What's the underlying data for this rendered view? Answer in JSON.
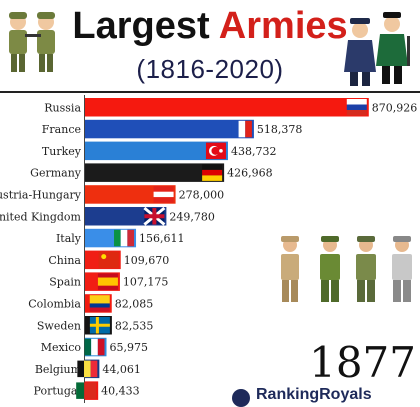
{
  "header": {
    "title_part1": "Largest",
    "title_part2": "Armies",
    "subtitle": "(1816-2020)"
  },
  "year": "1877",
  "branding": "RankingRoyals",
  "colors": {
    "accent": "#d3201a",
    "divider": "#222222"
  },
  "chart_data": {
    "type": "bar",
    "orientation": "horizontal",
    "title": "Largest Armies",
    "subtitle": "(1816-2020)",
    "year": "1877",
    "xlim": [
      0,
      890000
    ],
    "categories": [
      "Russia",
      "France",
      "Turkey",
      "Germany",
      "Austria-Hungary",
      "United Kingdom",
      "Italy",
      "China",
      "Spain",
      "Colombia",
      "Sweden",
      "Mexico",
      "Belgium",
      "Portugal"
    ],
    "values": [
      870926,
      518378,
      438732,
      426968,
      278000,
      249780,
      156611,
      109670,
      107175,
      82085,
      82535,
      65975,
      44061,
      40433
    ],
    "value_labels": [
      "870,926",
      "518,378",
      "438,732",
      "426,968",
      "278,000",
      "249,780",
      "156,611",
      "109,670",
      "107,175",
      "82,085",
      "82,535",
      "65,975",
      "44,061",
      "40,433"
    ],
    "bar_colors": [
      "#f5190f",
      "#1f4fb8",
      "#2a80d6",
      "#1b1b1b",
      "#ee2f0f",
      "#1c3d8f",
      "#3a8ee8",
      "#f01e14",
      "#f11d14",
      "#f21b10",
      "#141414",
      "#2c8edc",
      "#143a88",
      "#f01812"
    ],
    "flags": [
      "russia-flag",
      "france-flag",
      "turkey-flag",
      "germany-flag",
      "austria-hungary-flag",
      "united-kingdom-flag",
      "italy-flag",
      "china-flag",
      "spain-flag",
      "colombia-flag",
      "sweden-flag",
      "mexico-flag",
      "belgium-flag",
      "portugal-flag"
    ]
  }
}
